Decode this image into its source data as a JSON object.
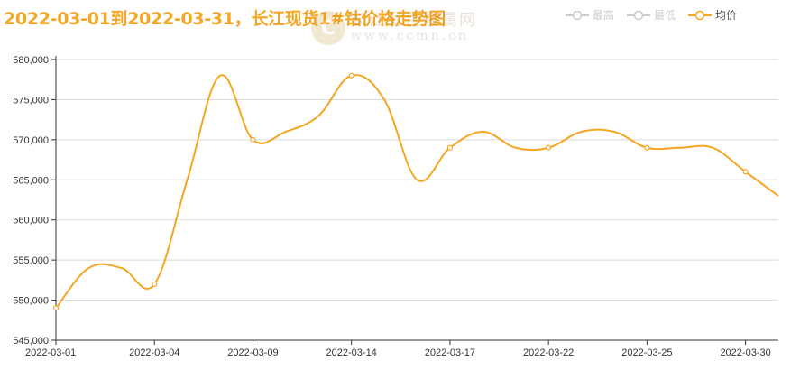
{
  "title": "2022-03-01到2022-03-31，长江现货1#钴价格走势图",
  "watermark": {
    "name": "长江有色金属网",
    "url": "www.ccmn.cn",
    "logo_letter": "C"
  },
  "legend": [
    {
      "label": "最高",
      "active": false,
      "color": "#cccccc"
    },
    {
      "label": "最低",
      "active": false,
      "color": "#cccccc"
    },
    {
      "label": "均价",
      "active": true,
      "color": "#f5a623"
    }
  ],
  "chart_data": {
    "type": "line",
    "title": "2022-03-01到2022-03-31，长江现货1#钴价格走势图",
    "xlabel": "",
    "ylabel": "",
    "ylim": [
      545000,
      580000
    ],
    "yticks": [
      545000,
      550000,
      555000,
      560000,
      565000,
      570000,
      575000,
      580000
    ],
    "ytick_labels": [
      "545,000",
      "550,000",
      "555,000",
      "560,000",
      "565,000",
      "570,000",
      "575,000",
      "580,000"
    ],
    "x": [
      "2022-03-01",
      "2022-03-02",
      "2022-03-03",
      "2022-03-04",
      "2022-03-07",
      "2022-03-08",
      "2022-03-09",
      "2022-03-10",
      "2022-03-11",
      "2022-03-14",
      "2022-03-15",
      "2022-03-16",
      "2022-03-17",
      "2022-03-18",
      "2022-03-21",
      "2022-03-22",
      "2022-03-23",
      "2022-03-24",
      "2022-03-25",
      "2022-03-28",
      "2022-03-29",
      "2022-03-30",
      "2022-03-31"
    ],
    "x_tick_labels": [
      "2022-03-01",
      "2022-03-04",
      "2022-03-09",
      "2022-03-14",
      "2022-03-17",
      "2022-03-22",
      "2022-03-25",
      "2022-03-30"
    ],
    "series": [
      {
        "name": "均价",
        "color": "#f5a623",
        "values": [
          549000,
          554000,
          554000,
          552000,
          565000,
          578000,
          570000,
          571000,
          573000,
          578000,
          575000,
          565000,
          569000,
          571000,
          569000,
          569000,
          571000,
          571000,
          569000,
          569000,
          569000,
          566000,
          563000
        ]
      }
    ],
    "grid": true,
    "legend_position": "top-right"
  }
}
